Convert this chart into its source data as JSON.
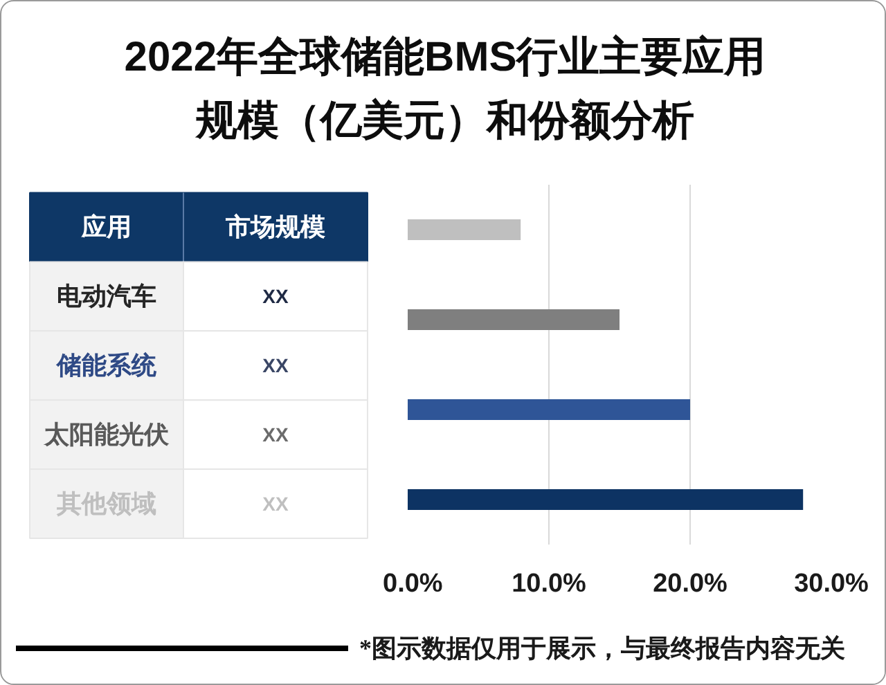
{
  "chart_data": [
    {
      "type": "other",
      "title": "2022年全球储能BMS行业主要应用规模（亿美元）和份额分析",
      "annotations": [
        "应用",
        "市场规模"
      ],
      "categories": [
        "电动汽车",
        "储能系统",
        "太阳能光伏",
        "其他领域"
      ],
      "value_labels": [
        "XX",
        "XX",
        "XX",
        "XX"
      ]
    },
    {
      "type": "bar",
      "orientation": "horizontal",
      "categories": [
        null,
        null,
        null,
        null
      ],
      "values": [
        8,
        15,
        20,
        28
      ],
      "colors": [
        "#bfbfbf",
        "#7f7f7f",
        "#2f5597",
        "#0d3363"
      ],
      "xlim": [
        0,
        30
      ],
      "xticks": [
        {
          "value": 0,
          "label": "0.0%"
        },
        {
          "value": 10,
          "label": "10.0%"
        },
        {
          "value": 20,
          "label": "20.0%"
        },
        {
          "value": 30,
          "label": "30.0%"
        }
      ],
      "grid": "x",
      "tick_labels": "x",
      "annotations": [
        "*图示数据仅用于展示，与最终报告内容无关"
      ]
    }
  ]
}
